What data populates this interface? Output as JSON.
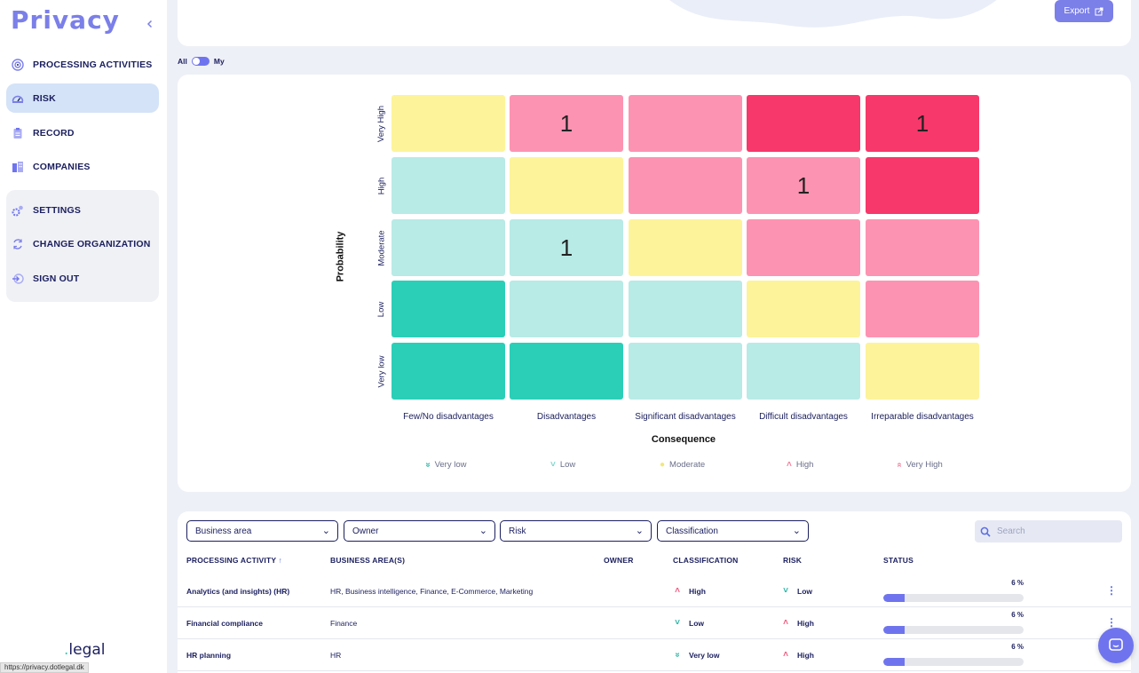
{
  "app": {
    "logo": "Privacy",
    "footer_logo_dot": ".",
    "footer_logo": "legal",
    "status_url": "https://privacy.dotlegal.dk"
  },
  "sidebar": {
    "items": [
      {
        "label": "PROCESSING ACTIVITIES",
        "icon": "target-icon"
      },
      {
        "label": "RISK",
        "icon": "gauge-icon",
        "active": true
      },
      {
        "label": "RECORD",
        "icon": "clipboard-icon"
      },
      {
        "label": "COMPANIES",
        "icon": "buildings-icon"
      }
    ],
    "group_items": [
      {
        "label": "SETTINGS",
        "icon": "gears-icon"
      },
      {
        "label": "CHANGE ORGANIZATION",
        "icon": "swap-icon"
      },
      {
        "label": "SIGN OUT",
        "icon": "sign-out-icon"
      }
    ]
  },
  "header": {
    "export_label": "Export"
  },
  "toggle": {
    "left": "All",
    "right": "My",
    "selected": "My"
  },
  "matrix": {
    "y_title": "Probability",
    "x_title": "Consequence",
    "rows": [
      "Very High",
      "High",
      "Moderate",
      "Low",
      "Very low"
    ],
    "columns": [
      "Few/No disadvantages",
      "Disadvantages",
      "Significant disadvantages",
      "Difficult disadvantages",
      "Irreparable disadvantages"
    ],
    "levels": [
      [
        "moderate",
        "high",
        "high",
        "very_high",
        "very_high"
      ],
      [
        "low",
        "moderate",
        "high",
        "high",
        "very_high"
      ],
      [
        "low",
        "low",
        "moderate",
        "high",
        "high"
      ],
      [
        "very_low",
        "low",
        "low",
        "moderate",
        "high"
      ],
      [
        "very_low",
        "very_low",
        "low",
        "low",
        "moderate"
      ]
    ],
    "counts": [
      [
        "",
        "1",
        "",
        "",
        "1"
      ],
      [
        "",
        "",
        "",
        "1",
        ""
      ],
      [
        "",
        "1",
        "",
        "",
        ""
      ],
      [
        "",
        "",
        "",
        "",
        ""
      ],
      [
        "",
        "",
        "",
        "",
        ""
      ]
    ],
    "colors": {
      "very_low": "#2bcfb8",
      "low": "#b8eae6",
      "moderate": "#fdf39a",
      "high": "#fd93b2",
      "very_high": "#f7386a"
    }
  },
  "legend": [
    {
      "label": "Very low",
      "icon": "double-chevron-down-icon",
      "glyph": "»",
      "color": "#2bb5a6"
    },
    {
      "label": "Low",
      "icon": "chevron-down-icon",
      "glyph": "˅",
      "color": "#7fd8cf"
    },
    {
      "label": "Moderate",
      "icon": "dot-icon",
      "glyph": "●",
      "color": "#f2e77a"
    },
    {
      "label": "High",
      "icon": "chevron-up-icon",
      "glyph": "˄",
      "color": "#f0819c"
    },
    {
      "label": "Very High",
      "icon": "double-chevron-up-icon",
      "glyph": "«",
      "color": "#f0819c"
    }
  ],
  "filters": {
    "business_area": "Business area",
    "owner": "Owner",
    "risk": "Risk",
    "classification": "Classification"
  },
  "search": {
    "placeholder": "Search"
  },
  "table": {
    "headers": {
      "activity": "PROCESSING ACTIVITY",
      "business_areas": "BUSINESS AREA(S)",
      "owner": "OWNER",
      "classification": "CLASSIFICATION",
      "risk": "RISK",
      "status": "STATUS"
    },
    "rows": [
      {
        "activity": "Analytics (and insights) (HR)",
        "areas": "HR, Business intelligence, Finance, E-Commerce, Marketing",
        "owner": "",
        "classification": "High",
        "risk": "Low",
        "status_pct": "6 %",
        "status_value": 0.06
      },
      {
        "activity": "Financial compliance",
        "areas": "Finance",
        "owner": "",
        "classification": "Low",
        "risk": "High",
        "status_pct": "6 %",
        "status_value": 0.06
      },
      {
        "activity": "HR planning",
        "areas": "HR",
        "owner": "",
        "classification": "Very low",
        "risk": "High",
        "status_pct": "6 %",
        "status_value": 0.06
      }
    ]
  }
}
